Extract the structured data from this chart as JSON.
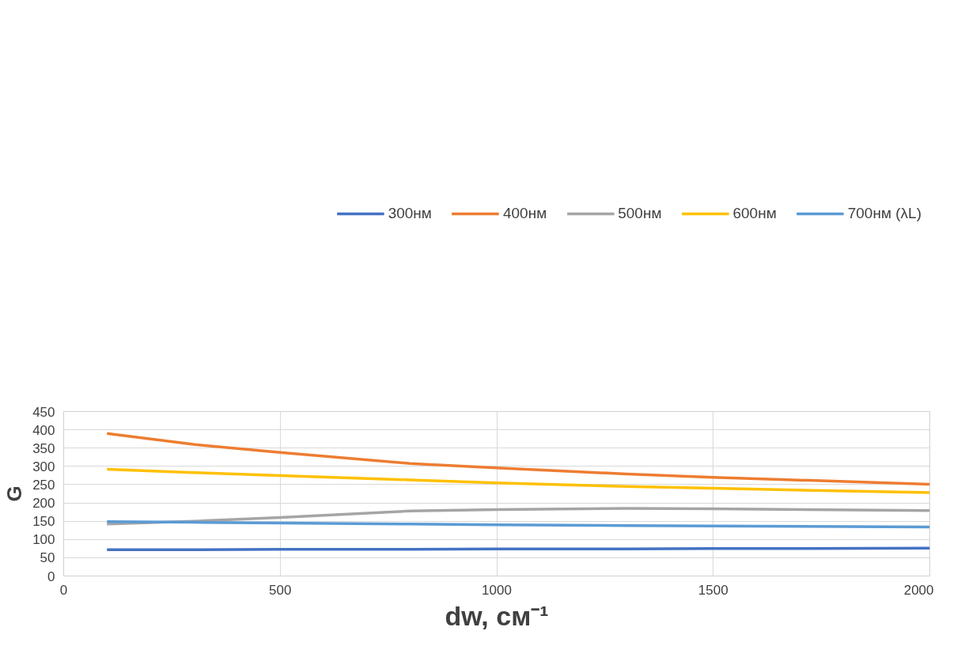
{
  "chart_data": {
    "type": "line",
    "xlabel": "dw, см⁻¹",
    "ylabel": "G",
    "x": [
      100,
      300,
      500,
      800,
      1000,
      1300,
      1500,
      2000
    ],
    "series": [
      {
        "name": "300нм",
        "color": "#4472c4",
        "values": [
          72,
          72,
          73,
          73,
          74,
          74,
          75,
          76
        ]
      },
      {
        "name": "400нм",
        "color": "#ed7d31",
        "values": [
          390,
          360,
          338,
          308,
          296,
          279,
          270,
          251
        ]
      },
      {
        "name": "500нм",
        "color": "#a5a5a5",
        "values": [
          142,
          150,
          160,
          178,
          182,
          185,
          184,
          179
        ]
      },
      {
        "name": "600нм",
        "color": "#ffc000",
        "values": [
          292,
          283,
          275,
          263,
          255,
          245,
          240,
          228
        ]
      },
      {
        "name": "700нм (λL)",
        "color": "#5b9bd5",
        "values": [
          149,
          147,
          145,
          142,
          140,
          138,
          137,
          134
        ]
      }
    ],
    "xlim": [
      0,
      2000
    ],
    "xticks": [
      0,
      500,
      1000,
      1500,
      2000
    ],
    "ylim": [
      0,
      450
    ],
    "yticks": [
      0,
      50,
      100,
      150,
      200,
      250,
      300,
      350,
      400,
      450
    ],
    "grid": true,
    "legend": "top",
    "marker": "none",
    "line_style": "solid"
  }
}
